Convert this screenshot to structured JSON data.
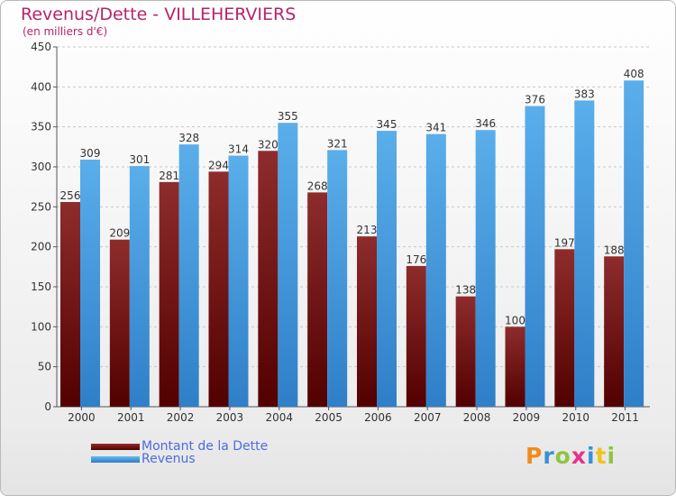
{
  "header": {
    "title": "Revenus/Dette - VILLEHERVIERS",
    "subtitle": "(en milliers d'€)"
  },
  "chart_data": {
    "type": "bar",
    "categories": [
      "2000",
      "2001",
      "2002",
      "2003",
      "2004",
      "2005",
      "2006",
      "2007",
      "2008",
      "2009",
      "2010",
      "2011"
    ],
    "series": [
      {
        "name": "Montant de la Dette",
        "values": [
          256,
          209,
          281,
          294,
          320,
          268,
          213,
          176,
          138,
          100,
          197,
          188
        ],
        "color": "#7a1a1a"
      },
      {
        "name": "Revenus",
        "values": [
          309,
          301,
          328,
          314,
          355,
          321,
          345,
          341,
          346,
          376,
          383,
          408
        ],
        "color": "#4a9fe0"
      }
    ],
    "ylim": [
      0,
      450
    ],
    "yticks": [
      0,
      50,
      100,
      150,
      200,
      250,
      300,
      350,
      400,
      450
    ],
    "grid": true,
    "legend_position": "bottom-left"
  },
  "legend": {
    "items": [
      {
        "label": "Montant de la Dette",
        "color": "#6e0f0f"
      },
      {
        "label": "Revenus",
        "color": "#4a9fe0"
      }
    ]
  },
  "logo": {
    "letters": [
      "P",
      "r",
      "o",
      "x",
      "i",
      "t",
      "i"
    ],
    "colors": [
      "#f08a1c",
      "#3b8fd6",
      "#8cc63f",
      "#e8318a",
      "#3b8fd6",
      "#f0c419",
      "#8cc63f"
    ]
  }
}
